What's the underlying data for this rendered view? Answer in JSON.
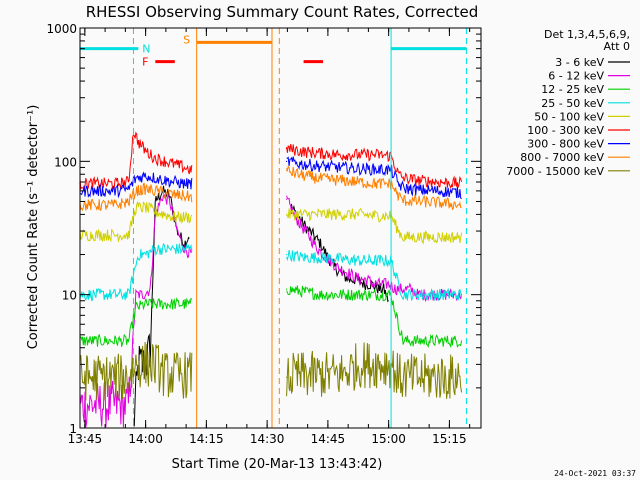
{
  "chart_data": {
    "type": "line",
    "title": "RHESSI Observing Summary Count Rates, Corrected",
    "xlabel": "Start Time (20-Mar-13 13:43:42)",
    "ylabel": "Corrected Count Rate (s⁻¹ detector⁻¹)",
    "y_scale": "log",
    "ylim": [
      1,
      1000
    ],
    "xlim": [
      13.73,
      15.38
    ],
    "x_ticks": [
      {
        "v": 13.75,
        "label": "13:45"
      },
      {
        "v": 14.0,
        "label": "14:00"
      },
      {
        "v": 14.25,
        "label": "14:15"
      },
      {
        "v": 14.5,
        "label": "14:30"
      },
      {
        "v": 14.75,
        "label": "14:45"
      },
      {
        "v": 15.0,
        "label": "15:00"
      },
      {
        "v": 15.25,
        "label": "15:15"
      }
    ],
    "y_ticks": [
      {
        "v": 1,
        "label": "1"
      },
      {
        "v": 10,
        "label": "10"
      },
      {
        "v": 100,
        "label": "100"
      },
      {
        "v": 1000,
        "label": "1000"
      }
    ],
    "legend_header": [
      "Det 1,3,4,5,6,9,",
      "Att 0"
    ],
    "legend_position": "right",
    "series": [
      {
        "name": "3 - 6 keV",
        "color": "#000000",
        "segments": [
          [
            [
              13.95,
              1
            ],
            [
              13.97,
              3
            ],
            [
              13.99,
              3
            ],
            [
              14.0,
              3
            ],
            [
              14.02,
              4
            ],
            [
              14.04,
              50
            ],
            [
              14.07,
              60
            ],
            [
              14.1,
              55
            ],
            [
              14.13,
              30
            ],
            [
              14.16,
              24
            ],
            [
              14.18,
              28
            ]
          ],
          [
            [
              14.6,
              45
            ],
            [
              14.63,
              38
            ],
            [
              14.66,
              32
            ],
            [
              14.69,
              28
            ],
            [
              14.72,
              24
            ],
            [
              14.75,
              19
            ],
            [
              14.78,
              16
            ],
            [
              14.81,
              14
            ],
            [
              14.84,
              13
            ],
            [
              14.87,
              13
            ],
            [
              14.9,
              12
            ],
            [
              14.93,
              12
            ],
            [
              14.96,
              11
            ],
            [
              14.98,
              11
            ],
            [
              15.0,
              9
            ]
          ]
        ]
      },
      {
        "name": "6 - 12 keV",
        "color": "#e000e0",
        "segments": [
          [
            [
              13.73,
              1.5
            ],
            [
              13.8,
              1.5
            ],
            [
              13.88,
              1.5
            ],
            [
              13.93,
              1.5
            ],
            [
              13.96,
              10
            ],
            [
              13.99,
              10
            ],
            [
              14.02,
              11
            ],
            [
              14.04,
              40
            ],
            [
              14.07,
              55
            ],
            [
              14.1,
              50
            ],
            [
              14.13,
              30
            ],
            [
              14.16,
              22
            ],
            [
              14.19,
              20
            ]
          ],
          [
            [
              14.58,
              52
            ],
            [
              14.61,
              40
            ],
            [
              14.64,
              33
            ],
            [
              14.67,
              28
            ],
            [
              14.7,
              23
            ],
            [
              14.73,
              20
            ],
            [
              14.76,
              18
            ],
            [
              14.79,
              16
            ],
            [
              14.82,
              15
            ],
            [
              14.85,
              14
            ],
            [
              14.88,
              13
            ],
            [
              14.91,
              13
            ],
            [
              14.94,
              12
            ],
            [
              14.97,
              12
            ],
            [
              15.0,
              12
            ],
            [
              15.03,
              11
            ],
            [
              15.06,
              11
            ],
            [
              15.09,
              11
            ],
            [
              15.12,
              10
            ],
            [
              15.15,
              10
            ],
            [
              15.2,
              10
            ],
            [
              15.25,
              10
            ],
            [
              15.3,
              10
            ]
          ]
        ]
      },
      {
        "name": "12 - 25 keV",
        "color": "#00d000",
        "segments": [
          [
            [
              13.73,
              4.5
            ],
            [
              13.8,
              4.5
            ],
            [
              13.88,
              4.5
            ],
            [
              13.93,
              4.5
            ],
            [
              13.96,
              8
            ],
            [
              14.0,
              8.5
            ],
            [
              14.03,
              8.5
            ],
            [
              14.06,
              8.5
            ],
            [
              14.1,
              8.5
            ],
            [
              14.15,
              8.5
            ],
            [
              14.19,
              8.5
            ]
          ],
          [
            [
              14.58,
              11
            ],
            [
              14.65,
              10.5
            ],
            [
              14.72,
              10
            ],
            [
              14.8,
              10
            ],
            [
              14.88,
              10
            ],
            [
              14.95,
              10
            ],
            [
              15.01,
              10
            ],
            [
              15.04,
              6
            ],
            [
              15.06,
              4.5
            ],
            [
              15.12,
              4.5
            ],
            [
              15.2,
              4.5
            ],
            [
              15.3,
              4.5
            ]
          ]
        ]
      },
      {
        "name": "25 - 50 keV",
        "color": "#00e0e0",
        "segments": [
          [
            [
              13.73,
              10
            ],
            [
              13.8,
              10
            ],
            [
              13.88,
              10
            ],
            [
              13.93,
              10
            ],
            [
              13.97,
              20
            ],
            [
              14.0,
              20
            ],
            [
              14.04,
              22
            ],
            [
              14.08,
              22
            ],
            [
              14.12,
              22
            ],
            [
              14.16,
              22
            ],
            [
              14.19,
              22
            ]
          ],
          [
            [
              14.58,
              20
            ],
            [
              14.65,
              19
            ],
            [
              14.72,
              19
            ],
            [
              14.8,
              18.5
            ],
            [
              14.88,
              18
            ],
            [
              14.95,
              18
            ],
            [
              15.01,
              18
            ],
            [
              15.04,
              12
            ],
            [
              15.06,
              10
            ],
            [
              15.12,
              10
            ],
            [
              15.2,
              10
            ],
            [
              15.3,
              10
            ]
          ]
        ]
      },
      {
        "name": "50 - 100 keV",
        "color": "#d0d000",
        "segments": [
          [
            [
              13.73,
              28
            ],
            [
              13.8,
              28
            ],
            [
              13.88,
              28
            ],
            [
              13.93,
              28
            ],
            [
              13.96,
              45
            ],
            [
              14.0,
              45
            ],
            [
              14.04,
              42
            ],
            [
              14.08,
              40
            ],
            [
              14.12,
              38
            ],
            [
              14.16,
              38
            ],
            [
              14.19,
              38
            ]
          ],
          [
            [
              14.58,
              40
            ],
            [
              14.65,
              40
            ],
            [
              14.72,
              40
            ],
            [
              14.8,
              40
            ],
            [
              14.88,
              40
            ],
            [
              14.95,
              39
            ],
            [
              15.01,
              39
            ],
            [
              15.04,
              30
            ],
            [
              15.06,
              27
            ],
            [
              15.12,
              27
            ],
            [
              15.2,
              27
            ],
            [
              15.3,
              27
            ]
          ]
        ]
      },
      {
        "name": "100 - 300 keV",
        "color": "#ff0000",
        "segments": [
          [
            [
              13.73,
              68
            ],
            [
              13.8,
              68
            ],
            [
              13.88,
              68
            ],
            [
              13.93,
              70
            ],
            [
              13.95,
              170
            ],
            [
              13.97,
              140
            ],
            [
              14.0,
              120
            ],
            [
              14.04,
              105
            ],
            [
              14.08,
              100
            ],
            [
              14.12,
              95
            ],
            [
              14.16,
              90
            ],
            [
              14.19,
              85
            ]
          ],
          [
            [
              14.58,
              125
            ],
            [
              14.65,
              118
            ],
            [
              14.72,
              115
            ],
            [
              14.8,
              112
            ],
            [
              14.88,
              112
            ],
            [
              14.95,
              112
            ],
            [
              15.01,
              110
            ],
            [
              15.04,
              80
            ],
            [
              15.06,
              75
            ],
            [
              15.12,
              72
            ],
            [
              15.2,
              70
            ],
            [
              15.3,
              68
            ]
          ]
        ]
      },
      {
        "name": "300 - 800 keV",
        "color": "#0000ff",
        "segments": [
          [
            [
              13.73,
              60
            ],
            [
              13.8,
              60
            ],
            [
              13.88,
              60
            ],
            [
              13.93,
              62
            ],
            [
              13.96,
              75
            ],
            [
              14.0,
              78
            ],
            [
              14.04,
              75
            ],
            [
              14.08,
              72
            ],
            [
              14.12,
              70
            ],
            [
              14.16,
              68
            ],
            [
              14.19,
              68
            ]
          ],
          [
            [
              14.58,
              100
            ],
            [
              14.65,
              95
            ],
            [
              14.72,
              92
            ],
            [
              14.8,
              90
            ],
            [
              14.88,
              88
            ],
            [
              14.95,
              87
            ],
            [
              15.01,
              86
            ],
            [
              15.04,
              68
            ],
            [
              15.06,
              63
            ],
            [
              15.12,
              61
            ],
            [
              15.2,
              60
            ],
            [
              15.3,
              58
            ]
          ]
        ]
      },
      {
        "name": "800 - 7000 keV",
        "color": "#ff8000",
        "segments": [
          [
            [
              13.73,
              47
            ],
            [
              13.8,
              47
            ],
            [
              13.88,
              47
            ],
            [
              13.93,
              50
            ],
            [
              13.96,
              60
            ],
            [
              14.0,
              62
            ],
            [
              14.04,
              60
            ],
            [
              14.08,
              58
            ],
            [
              14.12,
              56
            ],
            [
              14.16,
              55
            ],
            [
              14.19,
              54
            ]
          ],
          [
            [
              14.58,
              85
            ],
            [
              14.65,
              78
            ],
            [
              14.72,
              74
            ],
            [
              14.8,
              72
            ],
            [
              14.88,
              70
            ],
            [
              14.95,
              68
            ],
            [
              15.01,
              68
            ],
            [
              15.04,
              55
            ],
            [
              15.06,
              51
            ],
            [
              15.12,
              50
            ],
            [
              15.2,
              49
            ],
            [
              15.3,
              47
            ]
          ]
        ]
      },
      {
        "name": "7000 - 15000 keV",
        "color": "#808000",
        "segments": [
          [
            [
              13.73,
              2.4
            ],
            [
              13.8,
              2.4
            ],
            [
              13.88,
              2.4
            ],
            [
              13.93,
              2.4
            ],
            [
              13.96,
              3
            ],
            [
              14.0,
              3
            ],
            [
              14.04,
              3
            ],
            [
              14.08,
              2.5
            ],
            [
              14.12,
              2.5
            ],
            [
              14.16,
              2.5
            ],
            [
              14.19,
              2.5
            ]
          ],
          [
            [
              14.58,
              2.4
            ],
            [
              14.65,
              2.5
            ],
            [
              14.72,
              2.5
            ],
            [
              14.8,
              2.5
            ],
            [
              14.88,
              3
            ],
            [
              14.95,
              3
            ],
            [
              15.01,
              3
            ],
            [
              15.04,
              2.4
            ],
            [
              15.1,
              2.4
            ],
            [
              15.2,
              2.4
            ],
            [
              15.3,
              2.4
            ]
          ]
        ]
      }
    ],
    "time_markers": [
      {
        "x": 13.95,
        "color": "#00e0e0",
        "dashed": true
      },
      {
        "x": 14.21,
        "color": "#ff8000",
        "dashed": false
      },
      {
        "x": 14.52,
        "color": "#ff8000",
        "dashed": false
      },
      {
        "x": 14.55,
        "color": "#ff8000",
        "dashed": true
      },
      {
        "x": 15.01,
        "color": "#00e0e0",
        "dashed": false
      },
      {
        "x": 15.32,
        "color": "#00e0e0",
        "dashed": true
      }
    ],
    "flag_bars": [
      {
        "label": "N",
        "color": "#00e0e0",
        "y": 700,
        "ranges": [
          [
            13.73,
            13.97
          ],
          [
            15.01,
            15.32
          ]
        ]
      },
      {
        "label": "S",
        "color": "#ff8000",
        "y": 780,
        "ranges": [
          [
            14.21,
            14.52
          ]
        ]
      },
      {
        "label": "F",
        "color": "#ff0000",
        "y": 560,
        "ranges": [
          [
            14.04,
            14.12
          ],
          [
            14.65,
            14.73
          ]
        ]
      }
    ],
    "timestamp": "24-Oct-2021 03:37"
  }
}
